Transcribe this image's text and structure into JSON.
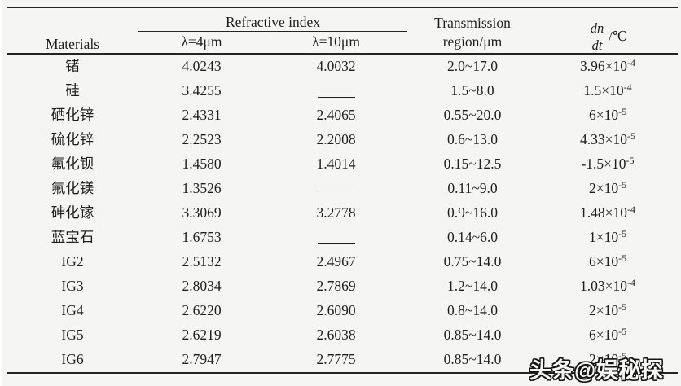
{
  "table": {
    "header": {
      "materials": "Materials",
      "refractive_index": "Refractive index",
      "lambda_4": "λ=4μm",
      "lambda_10": "λ=10μm",
      "transmission_line1": "Transmission",
      "transmission_line2": "region/μm",
      "dndt_numerator": "dn",
      "dndt_denominator": "dt",
      "dndt_unit": "/℃"
    },
    "rows": [
      {
        "material": "锗",
        "n4": "4.0243",
        "n10": "4.0032",
        "transmission": "2.0~17.0",
        "dndt": "3.96×10",
        "dndt_exp": "-4"
      },
      {
        "material": "硅",
        "n4": "3.4255",
        "n10": null,
        "transmission": "1.5~8.0",
        "dndt": "1.5×10",
        "dndt_exp": "-4"
      },
      {
        "material": "硒化锌",
        "n4": "2.4331",
        "n10": "2.4065",
        "transmission": "0.55~20.0",
        "dndt": "6×10",
        "dndt_exp": "-5"
      },
      {
        "material": "硫化锌",
        "n4": "2.2523",
        "n10": "2.2008",
        "transmission": "0.6~13.0",
        "dndt": "4.33×10",
        "dndt_exp": "-5"
      },
      {
        "material": "氟化钡",
        "n4": "1.4580",
        "n10": "1.4014",
        "transmission": "0.15~12.5",
        "dndt": "-1.5×10",
        "dndt_exp": "-5"
      },
      {
        "material": "氟化镁",
        "n4": "1.3526",
        "n10": null,
        "transmission": "0.11~9.0",
        "dndt": "2×10",
        "dndt_exp": "-5"
      },
      {
        "material": "砷化镓",
        "n4": "3.3069",
        "n10": "3.2778",
        "transmission": "0.9~16.0",
        "dndt": "1.48×10",
        "dndt_exp": "-4"
      },
      {
        "material": "蓝宝石",
        "n4": "1.6753",
        "n10": null,
        "transmission": "0.14~6.0",
        "dndt": "1×10",
        "dndt_exp": "-5"
      },
      {
        "material": "IG2",
        "n4": "2.5132",
        "n10": "2.4967",
        "transmission": "0.75~14.0",
        "dndt": "6×10",
        "dndt_exp": "-5"
      },
      {
        "material": "IG3",
        "n4": "2.8034",
        "n10": "2.7869",
        "transmission": "1.2~14.0",
        "dndt": "1.03×10",
        "dndt_exp": "-4"
      },
      {
        "material": "IG4",
        "n4": "2.6220",
        "n10": "2.6090",
        "transmission": "0.8~14.0",
        "dndt": "2×10",
        "dndt_exp": "-5"
      },
      {
        "material": "IG5",
        "n4": "2.6219",
        "n10": "2.6038",
        "transmission": "0.85~14.0",
        "dndt": "6×10",
        "dndt_exp": "-5"
      },
      {
        "material": "IG6",
        "n4": "2.7947",
        "n10": "2.7775",
        "transmission": "0.85~14.0",
        "dndt": "2×10",
        "dndt_exp": "-5"
      }
    ]
  },
  "watermark": {
    "text": "头条@娱秘探"
  },
  "colors": {
    "background": "#f5f5f3",
    "text": "#1f1f1f",
    "rule": "#242424",
    "watermark_fill": "#f7f7f5",
    "watermark_outline": "#161616"
  }
}
